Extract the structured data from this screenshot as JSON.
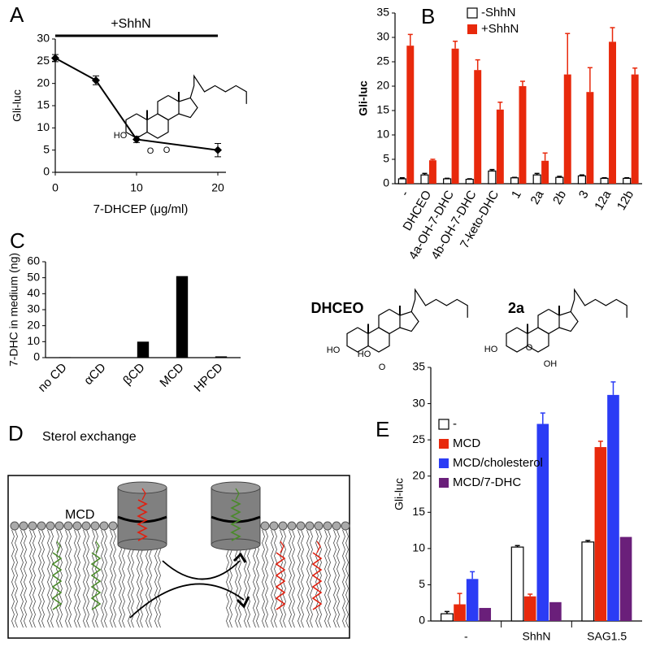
{
  "chart_data": [
    {
      "type": "line",
      "panel": "A",
      "annotation": "+ShhN",
      "xlabel": "7-DHCEP (μg/ml)",
      "ylabel": "Gli-luc",
      "x": [
        0,
        5,
        10,
        20
      ],
      "values": [
        25.7,
        20.7,
        7.4,
        5.0
      ],
      "errors": [
        0.8,
        1.0,
        0.7,
        1.5
      ],
      "color": "#000000",
      "xlim": [
        0,
        21
      ],
      "xticks": [
        0,
        10,
        20
      ],
      "ylim": [
        0,
        30
      ],
      "yticks": [
        0,
        5,
        10,
        15,
        20,
        25,
        30
      ]
    },
    {
      "type": "bar",
      "panel": "B",
      "ylabel": "Gli-luc",
      "legend": "top-right",
      "categories": [
        "-",
        "DHCEO",
        "4a-OH-7-DHC",
        "4b-OH-7-DHC",
        "7-keto-DHC",
        "1",
        "2a",
        "2b",
        "3",
        "12a",
        "12b"
      ],
      "series": [
        {
          "name": "-ShhN",
          "color": "#ffffff",
          "edgecolor": "#000000",
          "values": [
            1.0,
            1.8,
            1.0,
            0.9,
            2.6,
            1.2,
            1.8,
            1.3,
            1.6,
            1.1,
            1.1
          ],
          "errors": [
            0.2,
            0.3,
            0.1,
            0.1,
            0.3,
            0.1,
            0.3,
            0.2,
            0.2,
            0.1,
            0.1
          ]
        },
        {
          "name": "+ShhN",
          "color": "#e8290c",
          "values": [
            28.3,
            4.8,
            27.7,
            23.3,
            15.2,
            20.0,
            4.7,
            22.4,
            18.8,
            29.1,
            22.4
          ],
          "errors": [
            2.3,
            0.2,
            1.5,
            2.1,
            1.5,
            1.0,
            1.6,
            8.4,
            5.0,
            2.9,
            1.3
          ]
        }
      ],
      "ylim": [
        0,
        35
      ],
      "yticks": [
        0,
        5,
        10,
        15,
        20,
        25,
        30,
        35
      ]
    },
    {
      "type": "bar",
      "panel": "C",
      "ylabel": "7-DHC in medium (ng)",
      "categories": [
        "no CD",
        "αCD",
        "βCD",
        "MCD",
        "HPCD"
      ],
      "values": [
        0.3,
        0.2,
        10,
        51,
        0.8
      ],
      "color": "#000000",
      "ylim": [
        0,
        60
      ],
      "yticks": [
        0,
        10,
        20,
        30,
        40,
        50,
        60
      ]
    },
    {
      "type": "bar",
      "panel": "E",
      "ylabel": "Gli-luc",
      "legend": "top-left",
      "categories": [
        "-",
        "ShhN",
        "SAG1.5"
      ],
      "series": [
        {
          "name": "-",
          "color": "#ffffff",
          "edgecolor": "#000000",
          "values": [
            1.0,
            10.2,
            10.9
          ],
          "errors": [
            0.3,
            0.2,
            0.2
          ]
        },
        {
          "name": "MCD",
          "color": "#e8290c",
          "values": [
            2.3,
            3.4,
            24.0
          ],
          "errors": [
            1.5,
            0.3,
            0.8
          ]
        },
        {
          "name": "MCD/cholesterol",
          "color": "#2b3cf5",
          "values": [
            5.8,
            27.2,
            31.2
          ],
          "errors": [
            1.0,
            1.5,
            1.8
          ]
        },
        {
          "name": "MCD/7-DHC",
          "color": "#6a1f7a",
          "values": [
            1.8,
            2.6,
            11.6
          ],
          "errors": [
            null,
            null,
            null
          ]
        }
      ],
      "ylim": [
        0,
        35
      ],
      "yticks": [
        0,
        5,
        10,
        15,
        20,
        25,
        30,
        35
      ]
    }
  ],
  "diagram": {
    "panel": "D",
    "title": "Sterol exchange",
    "label": "MCD"
  },
  "structures": [
    {
      "atoms": [
        "HO",
        "O",
        "O"
      ]
    },
    {
      "name": "DHCEO",
      "atoms": [
        "HO",
        "HO",
        "O"
      ]
    },
    {
      "name": "2a",
      "atoms": [
        "HO",
        "O",
        "OH"
      ]
    }
  ]
}
